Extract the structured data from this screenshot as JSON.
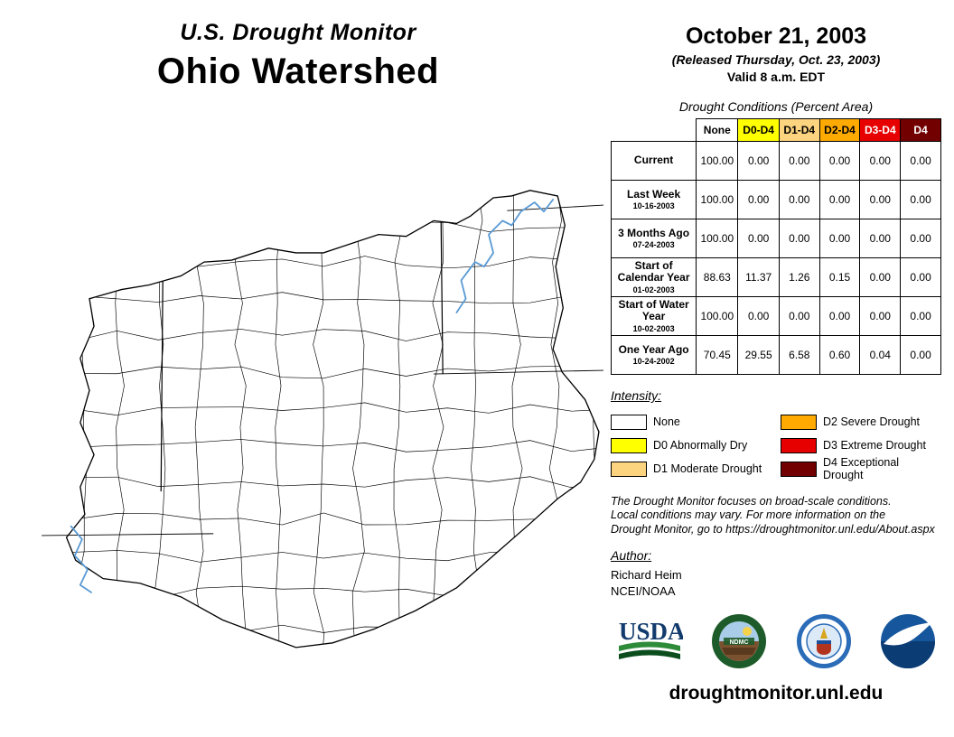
{
  "header": {
    "program": "U.S. Drought Monitor",
    "region": "Ohio Watershed"
  },
  "date_block": {
    "map_date": "October 21, 2003",
    "released": "(Released Thursday, Oct. 23, 2003)",
    "valid": "Valid 8 a.m. EDT"
  },
  "table": {
    "title": "Drought Conditions (Percent Area)",
    "columns": [
      {
        "label": "None",
        "color": "#FFFFFF",
        "text": "#000000"
      },
      {
        "label": "D0-D4",
        "color": "#FFFF00",
        "text": "#000000"
      },
      {
        "label": "D1-D4",
        "color": "#FCD37F",
        "text": "#000000"
      },
      {
        "label": "D2-D4",
        "color": "#FFAA00",
        "text": "#000000"
      },
      {
        "label": "D3-D4",
        "color": "#E60000",
        "text": "#FFFFFF"
      },
      {
        "label": "D4",
        "color": "#730000",
        "text": "#FFFFFF"
      }
    ],
    "rows": [
      {
        "label": "Current",
        "date": "",
        "values": [
          "100.00",
          "0.00",
          "0.00",
          "0.00",
          "0.00",
          "0.00"
        ]
      },
      {
        "label": "Last Week",
        "date": "10-16-2003",
        "values": [
          "100.00",
          "0.00",
          "0.00",
          "0.00",
          "0.00",
          "0.00"
        ]
      },
      {
        "label": "3 Months Ago",
        "date": "07-24-2003",
        "values": [
          "100.00",
          "0.00",
          "0.00",
          "0.00",
          "0.00",
          "0.00"
        ]
      },
      {
        "label": "Start of Calendar Year",
        "date": "01-02-2003",
        "values": [
          "88.63",
          "11.37",
          "1.26",
          "0.15",
          "0.00",
          "0.00"
        ]
      },
      {
        "label": "Start of Water Year",
        "date": "10-02-2003",
        "values": [
          "100.00",
          "0.00",
          "0.00",
          "0.00",
          "0.00",
          "0.00"
        ]
      },
      {
        "label": "One Year Ago",
        "date": "10-24-2002",
        "values": [
          "70.45",
          "29.55",
          "6.58",
          "0.60",
          "0.04",
          "0.00"
        ]
      }
    ]
  },
  "legend": {
    "title": "Intensity:",
    "items": [
      {
        "label": "None",
        "color": "#FFFFFF"
      },
      {
        "label": "D0 Abnormally Dry",
        "color": "#FFFF00"
      },
      {
        "label": "D1 Moderate Drought",
        "color": "#FCD37F"
      },
      {
        "label": "D2 Severe Drought",
        "color": "#FFAA00"
      },
      {
        "label": "D3 Extreme Drought",
        "color": "#E60000"
      },
      {
        "label": "D4 Exceptional Drought",
        "color": "#730000"
      }
    ]
  },
  "disclaimer": {
    "text": "The Drought Monitor focuses on broad-scale conditions.\nLocal conditions may vary. For more information on the\nDrought Monitor, go to https://droughtmonitor.unl.edu/About.aspx"
  },
  "author": {
    "heading": "Author:",
    "name": "Richard Heim",
    "agency": "NCEI/NOAA"
  },
  "logos": {
    "usda": "USDA",
    "ndmc": "NDMC"
  },
  "map": {
    "river_color": "#5B9BD5",
    "no_drought_fill": "#FFFFFF"
  },
  "footer": {
    "url": "droughtmonitor.unl.edu"
  }
}
